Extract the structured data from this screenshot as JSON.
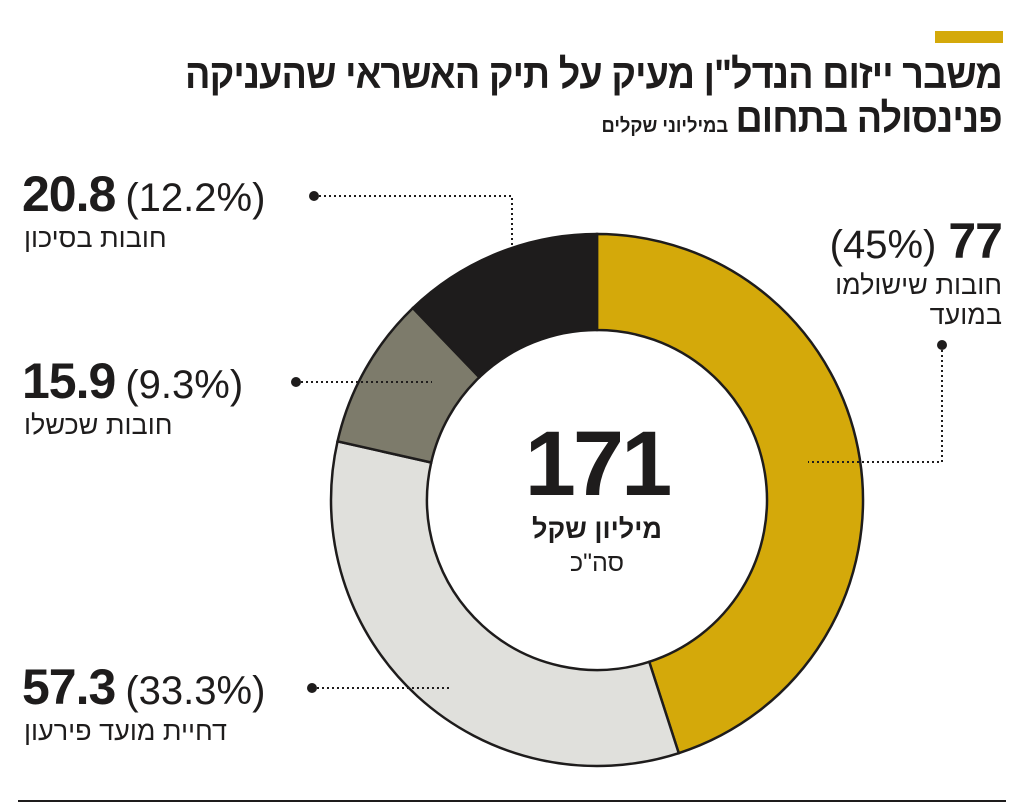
{
  "header": {
    "title_line1": "משבר ייזום הנדל\"ן מעיק על תיק האשראי שהעניקה",
    "title_line2": "פנינסולה בתחום",
    "subtitle": "במיליוני שקלים"
  },
  "center": {
    "total": "171",
    "unit": "מיליון שקל",
    "label": "סה\"כ"
  },
  "colors": {
    "gold": "#d4a90a",
    "light_gray": "#e0e0dc",
    "gray": "#7d7b6b",
    "black": "#1e1c1c"
  },
  "chart_data": {
    "type": "pie",
    "variant": "donut",
    "title": "משבר ייזום הנדל\"ן מעיק על תיק האשראי שהעניקה פנינסולה בתחום",
    "unit": "במיליוני שקלים",
    "total": 171,
    "slices": [
      {
        "label": "חובות שישולמו במועד",
        "value": 77,
        "value_text": "77",
        "percent": 45,
        "percent_text": "(45%)",
        "color": "#d4a90a"
      },
      {
        "label": "דחיית מועד פירעון",
        "value": 57.3,
        "value_text": "57.3",
        "percent": 33.3,
        "percent_text": "(33.3%)",
        "color": "#e0e0dc"
      },
      {
        "label": "חובות שכשלו",
        "value": 15.9,
        "value_text": "15.9",
        "percent": 9.3,
        "percent_text": "(9.3%)",
        "color": "#7d7b6b"
      },
      {
        "label": "חובות בסיכון",
        "value": 20.8,
        "value_text": "20.8",
        "percent": 12.2,
        "percent_text": "(12.2%)",
        "color": "#1e1c1c"
      }
    ]
  }
}
